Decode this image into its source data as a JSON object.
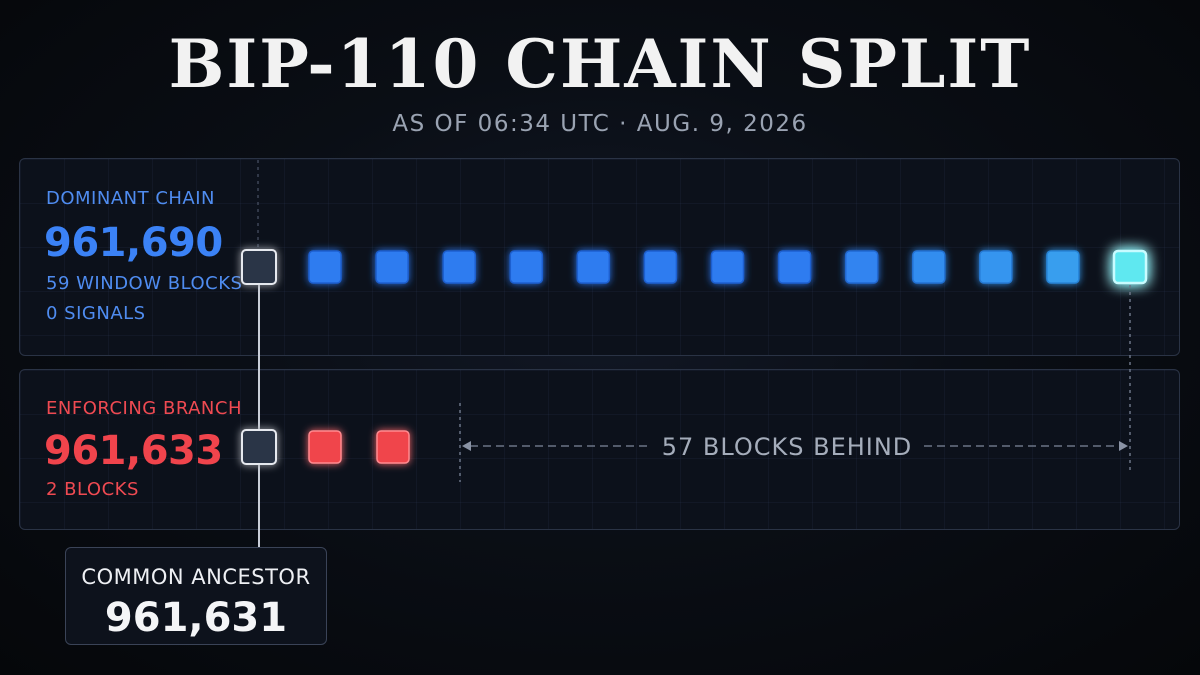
{
  "title": "BIP-110 CHAIN SPLIT",
  "subtitle": "AS OF 06:34 UTC · AUG. 9, 2026",
  "dominant": {
    "label": "DOMINANT CHAIN",
    "height": "961,690",
    "window_blocks": "59 WINDOW BLOCKS",
    "signals": "0 SIGNALS",
    "block_count_drawn": 13
  },
  "enforcing": {
    "label": "ENFORCING BRANCH",
    "height": "961,633",
    "blocks": "2 BLOCKS",
    "block_count_drawn": 2
  },
  "gap_label": "57 BLOCKS BEHIND",
  "ancestor": {
    "label": "COMMON ANCESTOR",
    "height": "961,631"
  },
  "colors": {
    "blue": "#2f7cf0",
    "cyan": "#5ee8f0",
    "red": "#f0444c",
    "ancestor": "#2b3447"
  }
}
